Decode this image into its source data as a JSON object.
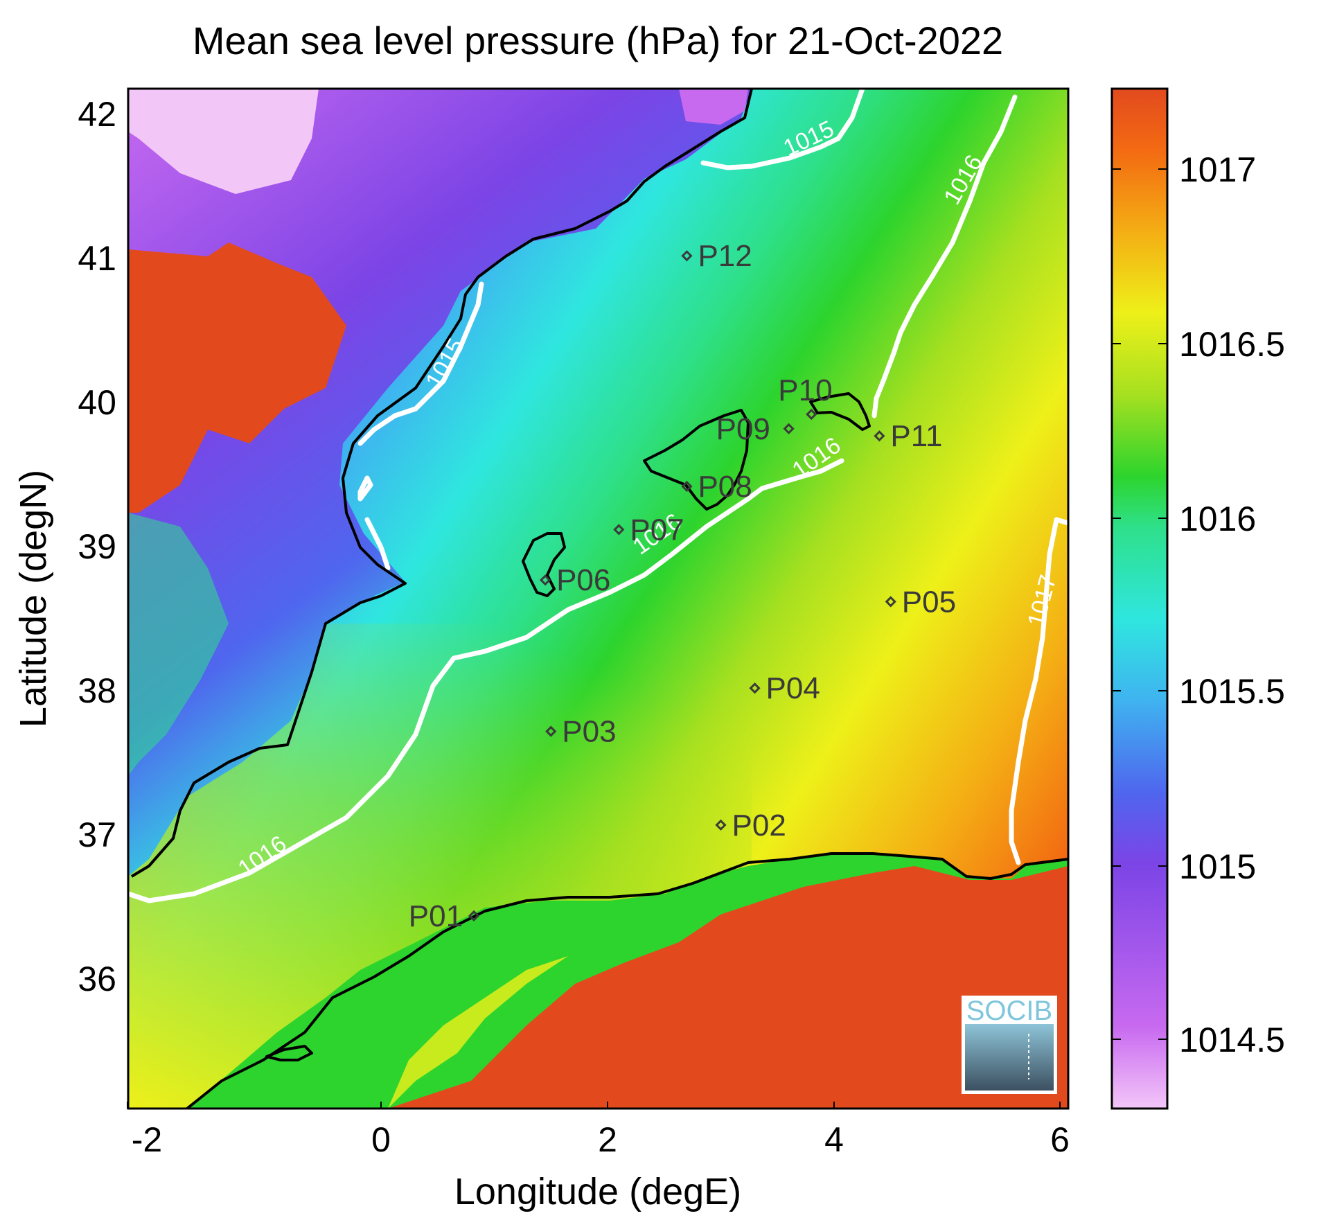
{
  "title": "Mean sea level pressure (hPa) for 21-Oct-2022",
  "xlabel": "Longitude (degE)",
  "ylabel": "Latitude (degN)",
  "xticks": [
    "-2",
    "0",
    "2",
    "4",
    "6"
  ],
  "yticks": [
    "42",
    "41",
    "40",
    "39",
    "38",
    "37",
    "36"
  ],
  "colorbar": {
    "range": [
      1014.3,
      1017.2
    ],
    "ticks": [
      "1017",
      "1016.5",
      "1016",
      "1015.5",
      "1015",
      "1014.5"
    ],
    "colors": [
      "#f3c6f8",
      "#c86af0",
      "#7c44e6",
      "#4f66ee",
      "#3fb3f0",
      "#2fe6df",
      "#2ee08a",
      "#2dd42d",
      "#a6e020",
      "#eef019",
      "#f4ae14",
      "#f36a12",
      "#e24a1e"
    ]
  },
  "contour_labels": [
    "1015",
    "1016",
    "1015",
    "1016",
    "1016",
    "1016",
    "1017"
  ],
  "stations": [
    {
      "id": "P01",
      "lon": 0.82,
      "lat": 36.52
    },
    {
      "id": "P02",
      "lon": 3.0,
      "lat": 37.15
    },
    {
      "id": "P03",
      "lon": 1.5,
      "lat": 37.8
    },
    {
      "id": "P04",
      "lon": 3.3,
      "lat": 38.1
    },
    {
      "id": "P05",
      "lon": 4.5,
      "lat": 38.7
    },
    {
      "id": "P06",
      "lon": 1.45,
      "lat": 38.85
    },
    {
      "id": "P07",
      "lon": 2.1,
      "lat": 39.2
    },
    {
      "id": "P08",
      "lon": 2.7,
      "lat": 39.5
    },
    {
      "id": "P09",
      "lon": 3.6,
      "lat": 39.9
    },
    {
      "id": "P10",
      "lon": 3.8,
      "lat": 40.0
    },
    {
      "id": "P11",
      "lon": 4.4,
      "lat": 39.85
    },
    {
      "id": "P12",
      "lon": 2.7,
      "lat": 41.1
    }
  ],
  "logo": "SOCIB"
}
